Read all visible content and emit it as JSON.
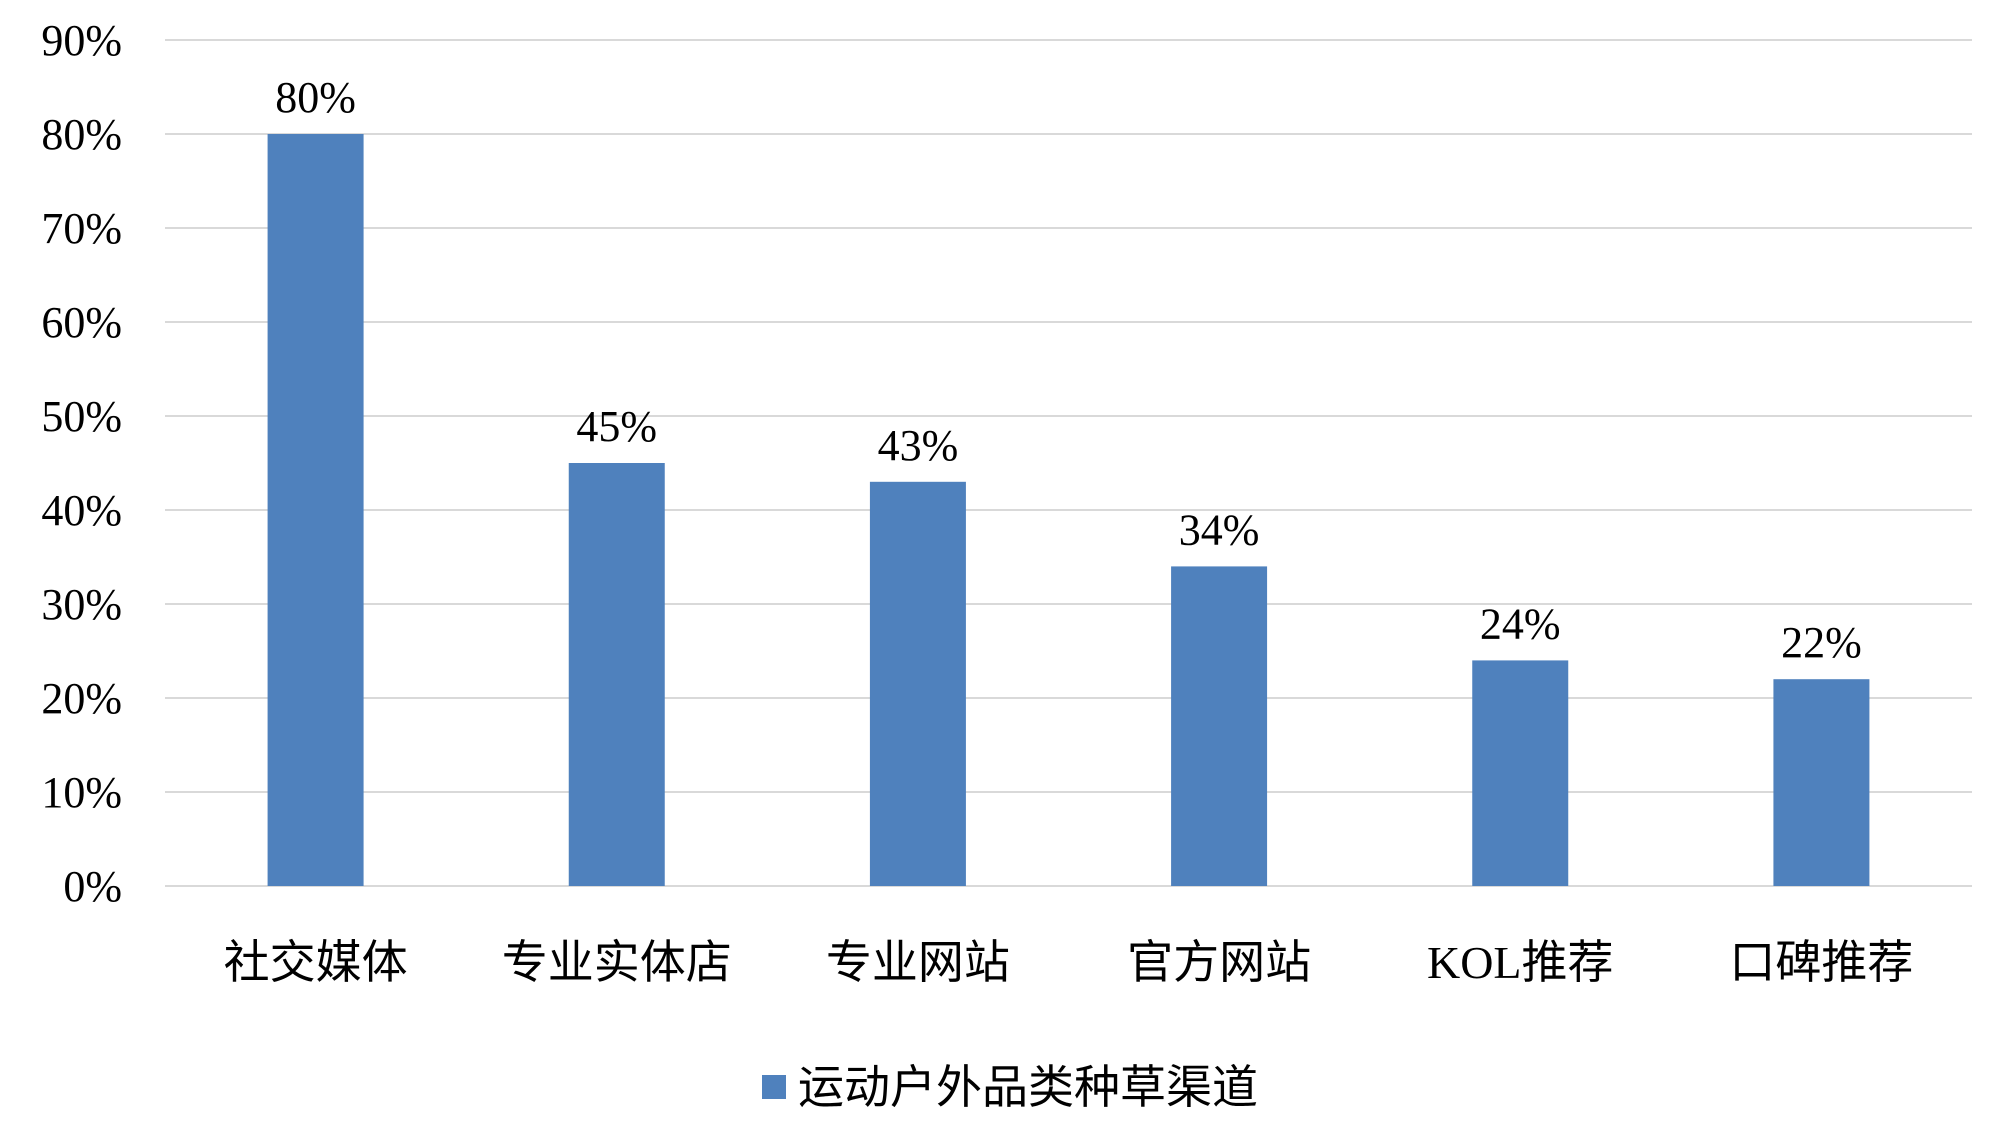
{
  "chart_data": {
    "type": "bar",
    "categories": [
      "社交媒体",
      "专业实体店",
      "专业网站",
      "官方网站",
      "KOL推荐",
      "口碑推荐"
    ],
    "series": [
      {
        "name": "运动户外品类种草渠道",
        "values": [
          80,
          45,
          43,
          34,
          24,
          22
        ],
        "color": "#4f81bd"
      }
    ],
    "data_labels": [
      "80%",
      "45%",
      "43%",
      "34%",
      "24%",
      "22%"
    ],
    "y_ticks": [
      "0%",
      "10%",
      "20%",
      "30%",
      "40%",
      "50%",
      "60%",
      "70%",
      "80%",
      "90%"
    ],
    "ylim": [
      0,
      90
    ],
    "y_unit": "%",
    "grid": true,
    "legend_position": "bottom"
  }
}
